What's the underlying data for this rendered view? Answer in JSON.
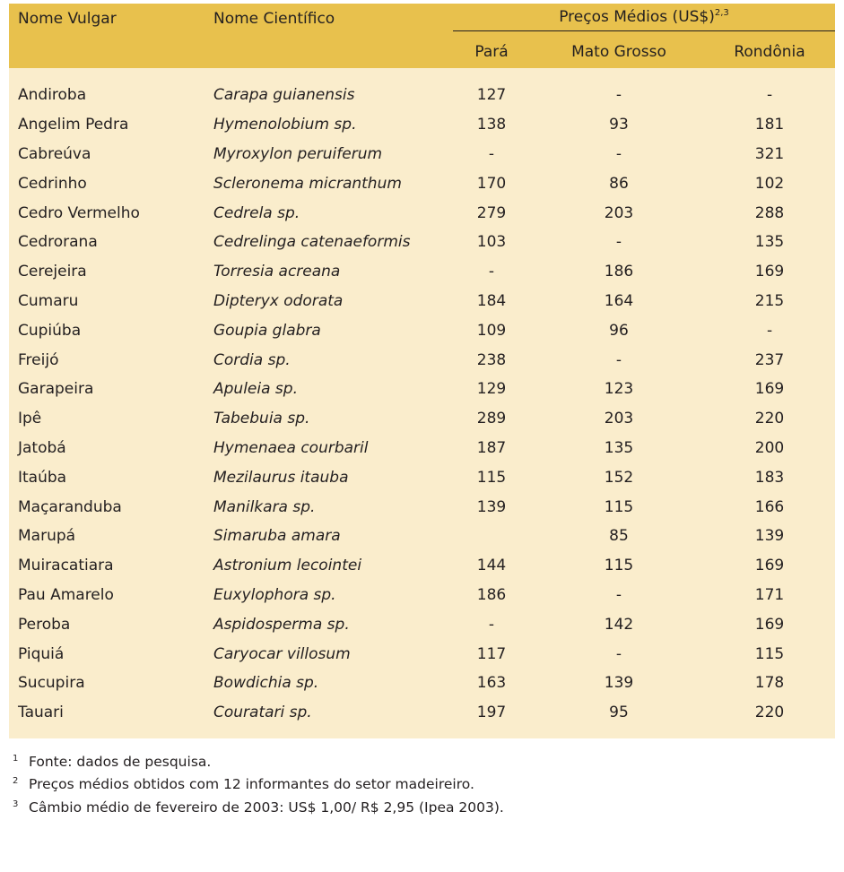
{
  "header": {
    "col_common": "Nome Vulgar",
    "col_scientific": "Nome Científico",
    "price_group": "Preços Médios (US$)",
    "price_group_sup": "2,3",
    "sub_para": "Pará",
    "sub_mato_grosso": "Mato Grosso",
    "sub_rondonia": "Rondônia"
  },
  "rows": [
    {
      "common": "Andiroba",
      "scientific": "Carapa guianensis",
      "para": "127",
      "mt": "-",
      "ro": "-"
    },
    {
      "common": "Angelim Pedra",
      "scientific": "Hymenolobium sp.",
      "para": "138",
      "mt": "93",
      "ro": "181"
    },
    {
      "common": "Cabreúva",
      "scientific": "Myroxylon peruiferum",
      "para": "-",
      "mt": "-",
      "ro": "321"
    },
    {
      "common": "Cedrinho",
      "scientific": "Scleronema micranthum",
      "para": "170",
      "mt": "86",
      "ro": "102"
    },
    {
      "common": "Cedro Vermelho",
      "scientific": "Cedrela sp.",
      "para": "279",
      "mt": "203",
      "ro": "288"
    },
    {
      "common": "Cedrorana",
      "scientific": "Cedrelinga catenaeformis",
      "para": "103",
      "mt": "-",
      "ro": "135"
    },
    {
      "common": "Cerejeira",
      "scientific": "Torresia acreana",
      "para": "-",
      "mt": "186",
      "ro": "169"
    },
    {
      "common": "Cumaru",
      "scientific": "Dipteryx odorata",
      "para": "184",
      "mt": "164",
      "ro": "215"
    },
    {
      "common": "Cupiúba",
      "scientific": "Goupia glabra",
      "para": "109",
      "mt": "96",
      "ro": "-"
    },
    {
      "common": "Freijó",
      "scientific": "Cordia sp.",
      "para": "238",
      "mt": "-",
      "ro": "237"
    },
    {
      "common": "Garapeira",
      "scientific": "Apuleia sp.",
      "para": "129",
      "mt": "123",
      "ro": "169"
    },
    {
      "common": "Ipê",
      "scientific": "Tabebuia sp.",
      "para": "289",
      "mt": "203",
      "ro": "220"
    },
    {
      "common": "Jatobá",
      "scientific": "Hymenaea courbaril",
      "para": "187",
      "mt": "135",
      "ro": "200"
    },
    {
      "common": "Itaúba",
      "scientific": "Mezilaurus itauba",
      "para": "115",
      "mt": "152",
      "ro": "183"
    },
    {
      "common": "Maçaranduba",
      "scientific": "Manilkara sp.",
      "para": "139",
      "mt": "115",
      "ro": "166"
    },
    {
      "common": "Marupá",
      "scientific": "Simaruba amara",
      "para": "",
      "mt": "85",
      "ro": "139"
    },
    {
      "common": "Muiracatiara",
      "scientific": "Astronium lecointei",
      "para": "144",
      "mt": "115",
      "ro": "169"
    },
    {
      "common": "Pau Amarelo",
      "scientific": "Euxylophora sp.",
      "para": "186",
      "mt": "-",
      "ro": "171"
    },
    {
      "common": "Peroba",
      "scientific": "Aspidosperma sp.",
      "para": "-",
      "mt": "142",
      "ro": "169"
    },
    {
      "common": "Piquiá",
      "scientific": "Caryocar villosum",
      "para": "117",
      "mt": "-",
      "ro": "115"
    },
    {
      "common": "Sucupira",
      "scientific": "Bowdichia sp.",
      "para": "163",
      "mt": "139",
      "ro": "178"
    },
    {
      "common": "Tauari",
      "scientific": "Couratari sp.",
      "para": "197",
      "mt": "95",
      "ro": "220"
    }
  ],
  "notes": [
    {
      "sup": "1",
      "text": "Fonte: dados de pesquisa."
    },
    {
      "sup": "2",
      "text": "Preços médios obtidos com 12 informantes do setor madeireiro."
    },
    {
      "sup": "3",
      "text": "Câmbio médio de fevereiro de 2003: US$ 1,00/ R$ 2,95 (Ipea 2003)."
    }
  ],
  "colors": {
    "header_bg": "#e8c14d",
    "body_bg": "#faedcc"
  }
}
